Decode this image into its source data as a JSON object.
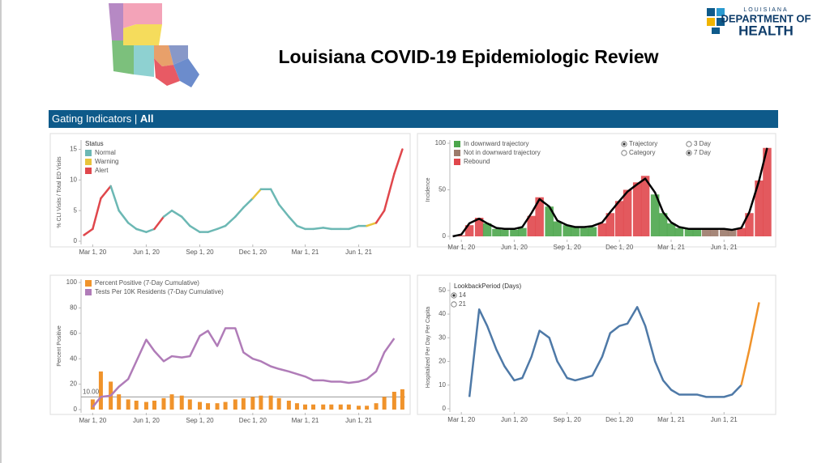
{
  "header": {
    "title": "Louisiana COVID-19 Epidemiologic Review",
    "logo_top": "LOUISIANA",
    "logo_middle": "DEPARTMENT OF",
    "logo_bottom": "HEALTH"
  },
  "banner": {
    "label": "Gating Indicators |",
    "value": "All"
  },
  "chart_data": [
    {
      "type": "line",
      "y_label": "% CLI Visits / Total ED Visits",
      "x": [
        "2020-02-15",
        "2020-03-01",
        "2020-03-15",
        "2020-04-01",
        "2020-04-15",
        "2020-05-01",
        "2020-05-15",
        "2020-06-01",
        "2020-06-15",
        "2020-07-01",
        "2020-07-15",
        "2020-08-01",
        "2020-08-15",
        "2020-09-01",
        "2020-09-15",
        "2020-10-01",
        "2020-10-15",
        "2020-11-01",
        "2020-11-15",
        "2020-12-01",
        "2020-12-15",
        "2021-01-01",
        "2021-01-15",
        "2021-02-01",
        "2021-02-15",
        "2021-03-01",
        "2021-03-15",
        "2021-04-01",
        "2021-04-15",
        "2021-05-01",
        "2021-05-15",
        "2021-06-01",
        "2021-06-15",
        "2021-07-01",
        "2021-07-15",
        "2021-08-01",
        "2021-08-15"
      ],
      "xlim": [
        "2020-02-10",
        "2021-08-20"
      ],
      "xticks": [
        {
          "value": "2020-03-01",
          "label": "Mar 1, 20"
        },
        {
          "value": "2020-06-01",
          "label": "Jun 1, 20"
        },
        {
          "value": "2020-09-01",
          "label": "Sep 1, 20"
        },
        {
          "value": "2020-12-01",
          "label": "Dec 1, 20"
        },
        {
          "value": "2021-03-01",
          "label": "Mar 1, 21"
        },
        {
          "value": "2021-06-01",
          "label": "Jun 1, 21"
        }
      ],
      "ylim": [
        0,
        16
      ],
      "yticks": [
        0,
        5,
        10,
        15
      ],
      "legend": {
        "title": "Status",
        "items": [
          {
            "name": "Normal",
            "color": "#6cb8b4"
          },
          {
            "name": "Warning",
            "color": "#e8c43c"
          },
          {
            "name": "Alert",
            "color": "#e0474c"
          }
        ]
      },
      "series": [
        {
          "values": [
            1,
            2,
            7,
            9,
            5,
            3,
            2,
            1.5,
            2,
            4,
            5,
            4,
            2.5,
            1.5,
            1.5,
            2,
            2.5,
            4,
            5.5,
            7,
            8.5,
            8.5,
            6,
            4,
            2.5,
            2,
            2,
            2.2,
            2,
            2,
            2,
            2.5,
            2.5,
            3,
            5,
            11,
            15
          ],
          "status": [
            "Normal",
            "Alert",
            "Alert",
            "Alert",
            "Normal",
            "Normal",
            "Normal",
            "Normal",
            "Normal",
            "Alert",
            "Normal",
            "Normal",
            "Normal",
            "Normal",
            "Normal",
            "Normal",
            "Normal",
            "Normal",
            "Normal",
            "Normal",
            "Warning",
            "Normal",
            "Normal",
            "Normal",
            "Normal",
            "Normal",
            "Normal",
            "Normal",
            "Normal",
            "Normal",
            "Normal",
            "Normal",
            "Normal",
            "Warning",
            "Alert",
            "Alert",
            "Alert"
          ]
        }
      ]
    },
    {
      "type": "bar",
      "y_label": "Incidence",
      "x": [
        "2020-02-15",
        "2020-03-01",
        "2020-03-15",
        "2020-04-01",
        "2020-04-15",
        "2020-05-01",
        "2020-05-15",
        "2020-06-01",
        "2020-06-15",
        "2020-07-01",
        "2020-07-15",
        "2020-08-01",
        "2020-08-15",
        "2020-09-01",
        "2020-09-15",
        "2020-10-01",
        "2020-10-15",
        "2020-11-01",
        "2020-11-15",
        "2020-12-01",
        "2020-12-15",
        "2021-01-01",
        "2021-01-15",
        "2021-02-01",
        "2021-02-15",
        "2021-03-01",
        "2021-03-15",
        "2021-04-01",
        "2021-04-15",
        "2021-05-01",
        "2021-05-15",
        "2021-06-01",
        "2021-06-15",
        "2021-07-01",
        "2021-07-15",
        "2021-08-01",
        "2021-08-15"
      ],
      "xlim": [
        "2020-02-10",
        "2021-08-20"
      ],
      "xticks": [
        {
          "value": "2020-03-01",
          "label": "Mar 1, 20"
        },
        {
          "value": "2020-06-01",
          "label": "Jun 1, 20"
        },
        {
          "value": "2020-09-01",
          "label": "Sep 1, 20"
        },
        {
          "value": "2020-12-01",
          "label": "Dec 1, 20"
        },
        {
          "value": "2021-03-01",
          "label": "Mar 1, 21"
        },
        {
          "value": "2021-06-01",
          "label": "Jun 1, 21"
        }
      ],
      "ylim": [
        0,
        100
      ],
      "yticks": [
        0,
        50,
        100
      ],
      "legend": {
        "items": [
          {
            "name": "In downward trajectory",
            "color": "#4ca64c"
          },
          {
            "name": "Not in downward trajectory",
            "color": "#9c7a6a"
          },
          {
            "name": "Rebound",
            "color": "#e0474c"
          }
        ],
        "options": [
          {
            "label": "Trajectory",
            "selected": true
          },
          {
            "label": "Category",
            "selected": false
          },
          {
            "label": "3 Day",
            "selected": false
          },
          {
            "label": "7 Day",
            "selected": true
          }
        ]
      },
      "series": [
        {
          "values": [
            0,
            1,
            12,
            20,
            14,
            8,
            7,
            7,
            9,
            22,
            42,
            32,
            16,
            12,
            10,
            9,
            10,
            14,
            25,
            38,
            50,
            58,
            65,
            45,
            25,
            14,
            9,
            8,
            8,
            8,
            8,
            8,
            7,
            9,
            25,
            60,
            95
          ],
          "status": [
            "Rebound",
            "Rebound",
            "Rebound",
            "Rebound",
            "In downward trajectory",
            "In downward trajectory",
            "In downward trajectory",
            "In downward trajectory",
            "In downward trajectory",
            "Rebound",
            "Rebound",
            "In downward trajectory",
            "In downward trajectory",
            "In downward trajectory",
            "In downward trajectory",
            "In downward trajectory",
            "In downward trajectory",
            "Rebound",
            "Rebound",
            "Rebound",
            "Rebound",
            "Rebound",
            "Rebound",
            "In downward trajectory",
            "In downward trajectory",
            "In downward trajectory",
            "In downward trajectory",
            "In downward trajectory",
            "In downward trajectory",
            "Not in downward trajectory",
            "Not in downward trajectory",
            "Not in downward trajectory",
            "Not in downward trajectory",
            "Rebound",
            "Rebound",
            "Rebound",
            "Rebound"
          ]
        },
        {
          "color": "#000000",
          "values": [
            0,
            2,
            14,
            19,
            14,
            9,
            8,
            8,
            10,
            25,
            40,
            32,
            17,
            12,
            10,
            10,
            11,
            15,
            26,
            38,
            48,
            56,
            62,
            47,
            26,
            15,
            10,
            8,
            8,
            8,
            8,
            8,
            7,
            9,
            26,
            60,
            95
          ]
        }
      ]
    },
    {
      "type": "bar",
      "y_label": "Percent Positive",
      "x": [
        "2020-02-15",
        "2020-03-01",
        "2020-03-15",
        "2020-04-01",
        "2020-04-15",
        "2020-05-01",
        "2020-05-15",
        "2020-06-01",
        "2020-06-15",
        "2020-07-01",
        "2020-07-15",
        "2020-08-01",
        "2020-08-15",
        "2020-09-01",
        "2020-09-15",
        "2020-10-01",
        "2020-10-15",
        "2020-11-01",
        "2020-11-15",
        "2020-12-01",
        "2020-12-15",
        "2021-01-01",
        "2021-01-15",
        "2021-02-01",
        "2021-02-15",
        "2021-03-01",
        "2021-03-15",
        "2021-04-01",
        "2021-04-15",
        "2021-05-01",
        "2021-05-15",
        "2021-06-01",
        "2021-06-15",
        "2021-07-01",
        "2021-07-15",
        "2021-08-01",
        "2021-08-15"
      ],
      "xlim": [
        "2020-02-10",
        "2021-08-20"
      ],
      "xticks": [
        {
          "value": "2020-03-01",
          "label": "Mar 1, 20"
        },
        {
          "value": "2020-06-01",
          "label": "Jun 1, 20"
        },
        {
          "value": "2020-09-01",
          "label": "Sep 1, 20"
        },
        {
          "value": "2020-12-01",
          "label": "Dec 1, 20"
        },
        {
          "value": "2021-03-01",
          "label": "Mar 1, 21"
        },
        {
          "value": "2021-06-01",
          "label": "Jun 1, 21"
        }
      ],
      "ylim": [
        0,
        100
      ],
      "yticks": [
        0,
        20,
        40,
        60,
        80,
        100
      ],
      "reference_line": {
        "value": 10,
        "label": "10.00"
      },
      "series": [
        {
          "name": "Percent Positive (7-Day Cumulative)",
          "color": "#f0932b",
          "values": [
            0,
            8,
            30,
            22,
            12,
            8,
            7,
            6,
            7,
            9,
            12,
            11,
            8,
            6,
            5,
            5,
            6,
            8,
            9,
            10,
            11,
            11,
            9,
            7,
            5,
            4,
            4,
            4,
            4,
            4,
            4,
            3,
            3,
            5,
            10,
            14,
            16
          ]
        },
        {
          "name": "Tests Per 10K Residents (7-Day Cumulative)",
          "color": "#b07cb8",
          "values": [
            null,
            2,
            10,
            11,
            18,
            24,
            38,
            55,
            46,
            38,
            42,
            41,
            42,
            58,
            62,
            50,
            64,
            64,
            45,
            40,
            38,
            34,
            32,
            30,
            28,
            26,
            23,
            23,
            22,
            22,
            21,
            22,
            24,
            30,
            45,
            56,
            null
          ]
        }
      ]
    },
    {
      "type": "line",
      "y_label": "Hospitalized Per Day Per Capita",
      "x": [
        "2020-02-15",
        "2020-03-01",
        "2020-03-15",
        "2020-04-01",
        "2020-04-15",
        "2020-05-01",
        "2020-05-15",
        "2020-06-01",
        "2020-06-15",
        "2020-07-01",
        "2020-07-15",
        "2020-08-01",
        "2020-08-15",
        "2020-09-01",
        "2020-09-15",
        "2020-10-01",
        "2020-10-15",
        "2020-11-01",
        "2020-11-15",
        "2020-12-01",
        "2020-12-15",
        "2021-01-01",
        "2021-01-15",
        "2021-02-01",
        "2021-02-15",
        "2021-03-01",
        "2021-03-15",
        "2021-04-01",
        "2021-04-15",
        "2021-05-01",
        "2021-05-15",
        "2021-06-01",
        "2021-06-15",
        "2021-07-01",
        "2021-07-15",
        "2021-08-01",
        "2021-08-15"
      ],
      "xlim": [
        "2020-02-10",
        "2021-08-20"
      ],
      "xticks": [
        {
          "value": "2020-03-01",
          "label": "Mar 1, 20"
        },
        {
          "value": "2020-06-01",
          "label": "Jun 1, 20"
        },
        {
          "value": "2020-09-01",
          "label": "Sep 1, 20"
        },
        {
          "value": "2020-12-01",
          "label": "Dec 1, 20"
        },
        {
          "value": "2021-03-01",
          "label": "Mar 1, 21"
        },
        {
          "value": "2021-06-01",
          "label": "Jun 1, 21"
        }
      ],
      "ylim": [
        0,
        52
      ],
      "yticks": [
        0,
        10,
        20,
        30,
        40,
        50
      ],
      "legend": {
        "title": "LookbackPeriod (Days)",
        "options": [
          {
            "label": "14",
            "selected": true
          },
          {
            "label": "21",
            "selected": false
          }
        ]
      },
      "series": [
        {
          "color": "#4e79a7",
          "values": [
            null,
            null,
            5,
            42,
            35,
            25,
            18,
            12,
            13,
            22,
            33,
            30,
            20,
            13,
            12,
            13,
            14,
            22,
            32,
            35,
            36,
            43,
            35,
            20,
            12,
            8,
            6,
            6,
            6,
            5,
            5,
            5,
            6,
            10,
            null,
            null,
            null
          ]
        },
        {
          "color": "#f0932b",
          "values": [
            null,
            null,
            null,
            null,
            null,
            null,
            null,
            null,
            null,
            null,
            null,
            null,
            null,
            null,
            null,
            null,
            null,
            null,
            null,
            null,
            null,
            null,
            null,
            null,
            null,
            null,
            null,
            null,
            null,
            null,
            null,
            null,
            null,
            10,
            25,
            45,
            null
          ]
        }
      ]
    }
  ]
}
